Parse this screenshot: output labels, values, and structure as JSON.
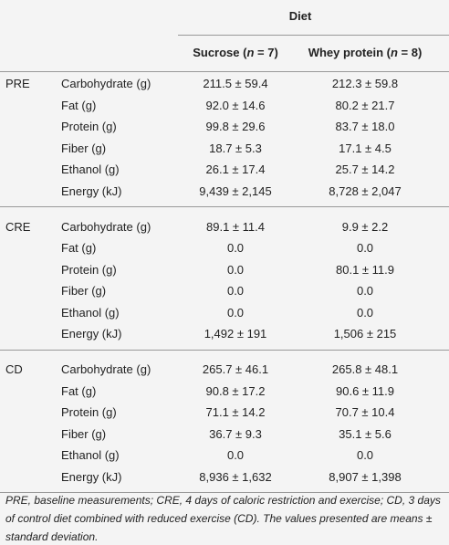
{
  "table": {
    "top_header": "Diet",
    "columns": [
      [
        "Sucrose (",
        "n",
        " = 7)"
      ],
      [
        "Whey protein (",
        "n",
        " = 8)"
      ]
    ],
    "groups": [
      {
        "label": "PRE",
        "rows": [
          [
            "Carbohydrate (g)",
            "211.5 ± 59.4",
            "212.3 ± 59.8"
          ],
          [
            "Fat (g)",
            "92.0 ± 14.6",
            "80.2 ± 21.7"
          ],
          [
            "Protein (g)",
            "99.8 ± 29.6",
            "83.7 ± 18.0"
          ],
          [
            "Fiber (g)",
            "18.7 ± 5.3",
            "17.1 ± 4.5"
          ],
          [
            "Ethanol (g)",
            "26.1 ± 17.4",
            "25.7 ± 14.2"
          ],
          [
            "Energy (kJ)",
            "9,439 ± 2,145",
            "8,728 ± 2,047"
          ]
        ]
      },
      {
        "label": "CRE",
        "rows": [
          [
            "Carbohydrate (g)",
            "89.1 ± 11.4",
            "9.9 ± 2.2"
          ],
          [
            "Fat (g)",
            "0.0",
            "0.0"
          ],
          [
            "Protein (g)",
            "0.0",
            "80.1 ± 11.9"
          ],
          [
            "Fiber (g)",
            "0.0",
            "0.0"
          ],
          [
            "Ethanol (g)",
            "0.0",
            "0.0"
          ],
          [
            "Energy (kJ)",
            "1,492 ± 191",
            "1,506 ± 215"
          ]
        ]
      },
      {
        "label": "CD",
        "rows": [
          [
            "Carbohydrate (g)",
            "265.7 ± 46.1",
            "265.8 ± 48.1"
          ],
          [
            "Fat (g)",
            "90.8 ± 17.2",
            "90.6 ± 11.9"
          ],
          [
            "Protein (g)",
            "71.1 ± 14.2",
            "70.7 ± 10.4"
          ],
          [
            "Fiber (g)",
            "36.7 ± 9.3",
            "35.1 ± 5.6"
          ],
          [
            "Ethanol (g)",
            "0.0",
            "0.0"
          ],
          [
            "Energy (kJ)",
            "8,936 ± 1,632",
            "8,907 ± 1,398"
          ]
        ]
      }
    ],
    "footnote": "PRE, baseline measurements; CRE, 4 days of caloric restriction and exercise; CD, 3 days of control diet combined with reduced exercise (CD). The values presented are means ± standard deviation."
  }
}
